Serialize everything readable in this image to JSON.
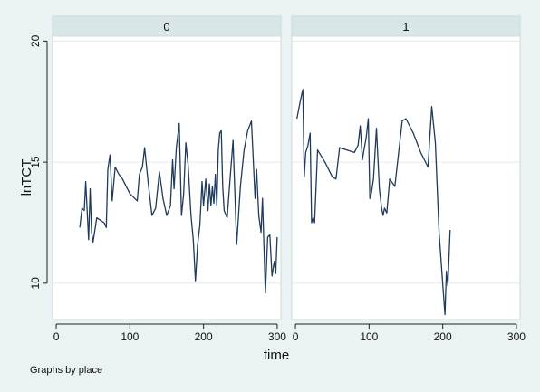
{
  "chart_data": {
    "type": "line",
    "by_variable": "place",
    "xlabel": "time",
    "ylabel": "lnTCT",
    "xlim": [
      -5,
      305
    ],
    "ylim": [
      8.5,
      20.2
    ],
    "xticks": [
      0,
      100,
      200,
      300
    ],
    "yticks": [
      10,
      15,
      20
    ],
    "grid": true,
    "note": "Graphs by place",
    "line_color": "#1f3a5a",
    "panels": [
      {
        "label": "0",
        "x": [
          32,
          35,
          38,
          40,
          42,
          44,
          46,
          48,
          50,
          55,
          60,
          65,
          68,
          70,
          73,
          76,
          80,
          85,
          90,
          95,
          100,
          110,
          113,
          117,
          120,
          125,
          130,
          135,
          140,
          145,
          150,
          155,
          158,
          160,
          163,
          167,
          170,
          173,
          176,
          179,
          183,
          186,
          189,
          192,
          195,
          198,
          200,
          203,
          206,
          208,
          210,
          212,
          214,
          216,
          218,
          220,
          222,
          224,
          226,
          228,
          232,
          236,
          240,
          245,
          250,
          255,
          260,
          265,
          270,
          272,
          275,
          278,
          280,
          284,
          287,
          290,
          293,
          296,
          298,
          300
        ],
        "y": [
          12.3,
          13.1,
          13.0,
          14.2,
          13.0,
          11.8,
          13.9,
          12.1,
          11.7,
          12.7,
          12.6,
          12.5,
          12.3,
          14.7,
          15.3,
          13.4,
          14.8,
          14.5,
          14.3,
          14.0,
          13.7,
          13.4,
          14.5,
          14.8,
          15.6,
          14.1,
          12.8,
          13.1,
          14.6,
          13.5,
          12.8,
          13.2,
          15.1,
          13.9,
          15.6,
          16.6,
          12.8,
          13.7,
          15.8,
          14.9,
          12.8,
          11.8,
          10.1,
          11.6,
          12.4,
          14.2,
          13.2,
          14.3,
          13.0,
          14.1,
          13.2,
          14.0,
          13.3,
          14.5,
          13.2,
          15.5,
          16.2,
          16.3,
          14.0,
          13.0,
          12.7,
          14.3,
          15.9,
          11.6,
          14.0,
          15.5,
          16.3,
          16.7,
          13.5,
          14.7,
          12.8,
          12.1,
          13.5,
          9.6,
          11.9,
          12.0,
          10.3,
          10.9,
          10.4,
          11.9
        ]
      },
      {
        "label": "1",
        "x": [
          2,
          7,
          10,
          12,
          14,
          17,
          20,
          22,
          24,
          26,
          30,
          40,
          50,
          55,
          60,
          70,
          80,
          85,
          88,
          91,
          93,
          96,
          99,
          101,
          103,
          106,
          110,
          114,
          117,
          119,
          121,
          124,
          128,
          135,
          145,
          150,
          160,
          170,
          180,
          185,
          190,
          195,
          200,
          203,
          205,
          207,
          210
        ],
        "y": [
          16.8,
          17.6,
          18.0,
          14.4,
          15.4,
          15.7,
          16.2,
          12.5,
          12.7,
          12.5,
          15.5,
          15.0,
          14.4,
          14.3,
          15.6,
          15.5,
          15.4,
          15.7,
          16.5,
          15.1,
          15.5,
          16.0,
          16.8,
          13.5,
          13.7,
          14.3,
          16.4,
          13.9,
          13.1,
          12.8,
          13.1,
          12.9,
          14.3,
          14.0,
          16.7,
          16.8,
          16.2,
          15.4,
          14.8,
          17.3,
          15.8,
          12.1,
          10.0,
          8.7,
          10.5,
          9.9,
          12.2
        ]
      }
    ]
  }
}
